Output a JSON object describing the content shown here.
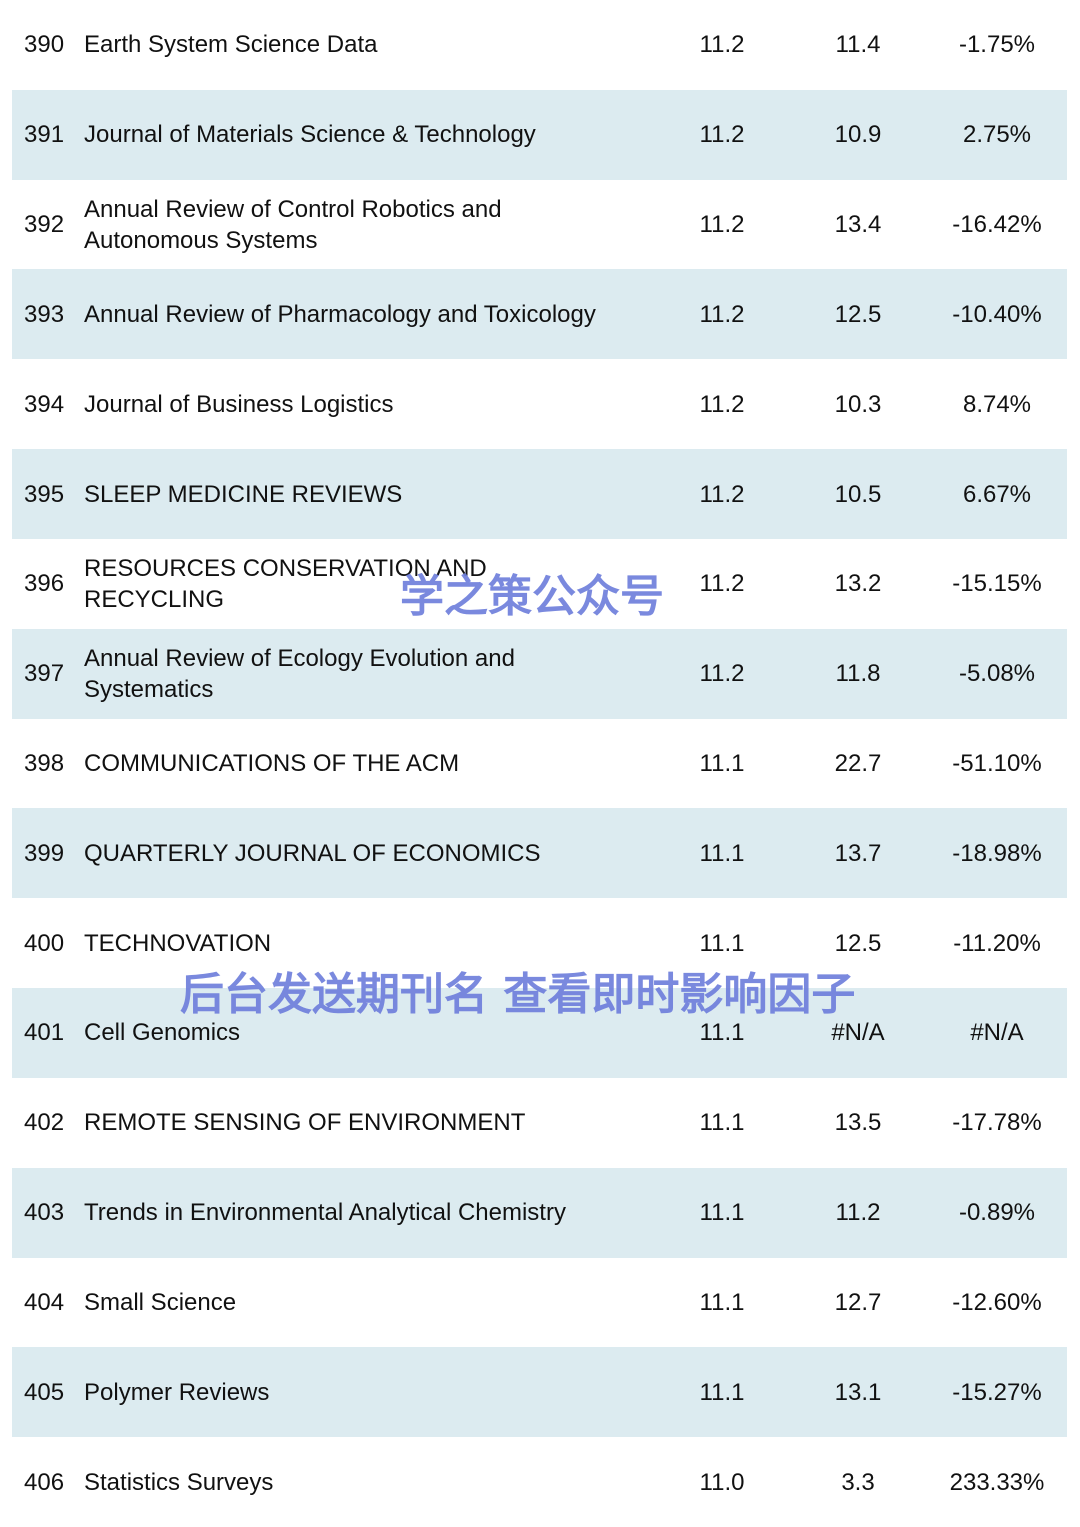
{
  "table": {
    "rows": [
      [
        "390",
        [
          "Earth System Science Data"
        ],
        "11.2",
        "11.4",
        "-1.75%"
      ],
      [
        "391",
        [
          "Journal of Materials Science & Technology"
        ],
        "11.2",
        "10.9",
        "2.75%"
      ],
      [
        "392",
        [
          "Annual Review of Control Robotics and",
          "Autonomous Systems"
        ],
        "11.2",
        "13.4",
        "-16.42%"
      ],
      [
        "393",
        [
          "Annual Review of Pharmacology and Toxicology"
        ],
        "11.2",
        "12.5",
        "-10.40%"
      ],
      [
        "394",
        [
          "Journal of Business Logistics"
        ],
        "11.2",
        "10.3",
        "8.74%"
      ],
      [
        "395",
        [
          "SLEEP MEDICINE REVIEWS"
        ],
        "11.2",
        "10.5",
        "6.67%"
      ],
      [
        "396",
        [
          "RESOURCES CONSERVATION AND",
          "RECYCLING"
        ],
        "11.2",
        "13.2",
        "-15.15%"
      ],
      [
        "397",
        [
          "Annual Review of Ecology Evolution and",
          "Systematics"
        ],
        "11.2",
        "11.8",
        "-5.08%"
      ],
      [
        "398",
        [
          "COMMUNICATIONS OF THE ACM"
        ],
        "11.1",
        "22.7",
        "-51.10%"
      ],
      [
        "399",
        [
          "QUARTERLY JOURNAL OF ECONOMICS"
        ],
        "11.1",
        "13.7",
        "-18.98%"
      ],
      [
        "400",
        [
          "TECHNOVATION"
        ],
        "11.1",
        "12.5",
        "-11.20%"
      ],
      [
        "401",
        [
          "Cell Genomics"
        ],
        "11.1",
        "#N/A",
        "#N/A"
      ],
      [
        "402",
        [
          "REMOTE SENSING OF ENVIRONMENT"
        ],
        "11.1",
        "13.5",
        "-17.78%"
      ],
      [
        "403",
        [
          "Trends in Environmental Analytical Chemistry"
        ],
        "11.1",
        "11.2",
        "-0.89%"
      ],
      [
        "404",
        [
          "Small Science"
        ],
        "11.1",
        "12.7",
        "-12.60%"
      ],
      [
        "405",
        [
          "Polymer Reviews"
        ],
        "11.1",
        "13.1",
        "-15.27%"
      ],
      [
        "406",
        [
          "Statistics Surveys"
        ],
        "11.0",
        "3.3",
        "233.33%"
      ]
    ]
  },
  "watermarks": [
    "学之策公众号",
    "后台发送期刊名 查看即时影响因子"
  ]
}
